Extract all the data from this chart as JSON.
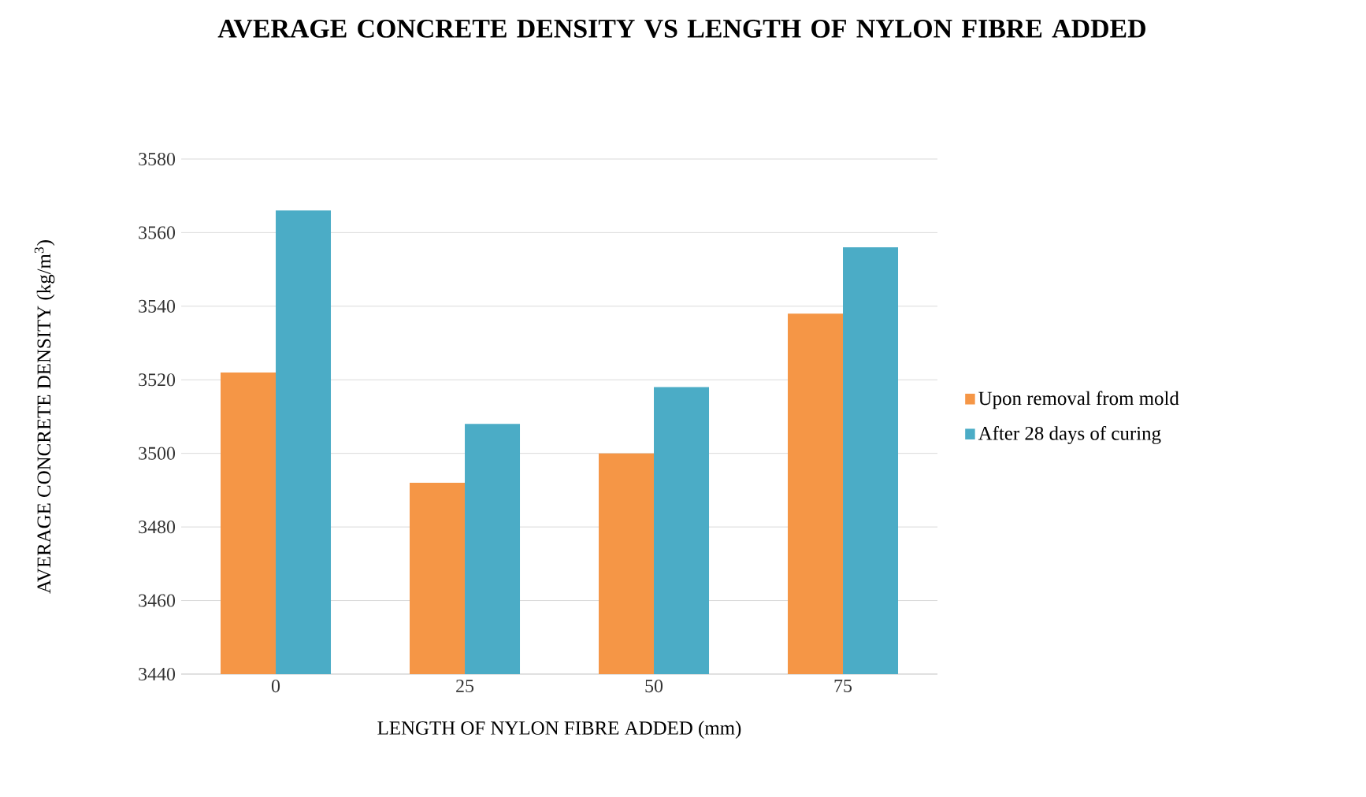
{
  "chart_data": {
    "type": "bar",
    "title": "AVERAGE CONCRETE DENSITY VS LENGTH OF NYLON FIBRE ADDED",
    "xlabel": "LENGTH OF NYLON FIBRE ADDED (mm)",
    "ylabel": "AVERAGE CONCRETE DENSITY (kg/m$^{3}$)",
    "categories": [
      "0",
      "25",
      "50",
      "75"
    ],
    "series": [
      {
        "name": "Upon removal from mold",
        "color": "#f59646",
        "values": [
          3522,
          3492,
          3500,
          3538
        ]
      },
      {
        "name": "After 28 days of curing",
        "color": "#4bacc6",
        "values": [
          3566,
          3508,
          3518,
          3556
        ]
      }
    ],
    "ylim": [
      3440,
      3580
    ],
    "yticks": [
      3440,
      3460,
      3480,
      3500,
      3520,
      3540,
      3560,
      3580
    ],
    "grid": "y",
    "legend": "right"
  }
}
